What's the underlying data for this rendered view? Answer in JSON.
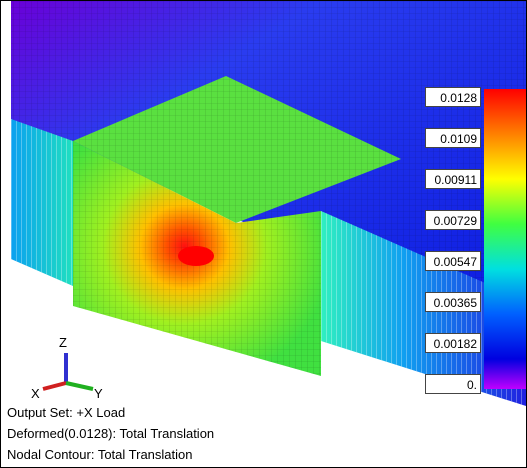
{
  "legend": {
    "labels": [
      "0.0128",
      "0.0109",
      "0.00911",
      "0.00729",
      "0.00547",
      "0.00365",
      "0.00182",
      "0."
    ]
  },
  "triad": {
    "z": "Z",
    "x": "X",
    "y": "Y"
  },
  "info": {
    "lines": [
      "Output Set: +X Load",
      "Deformed(0.0128): Total Translation",
      "Nodal Contour: Total Translation"
    ]
  }
}
